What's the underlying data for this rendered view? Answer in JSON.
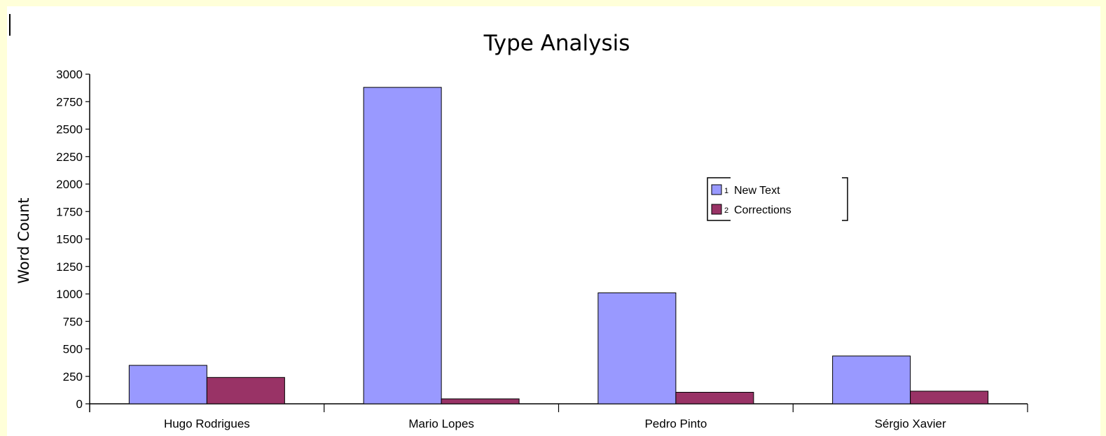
{
  "chart_data": {
    "type": "bar",
    "title": "Type Analysis",
    "xlabel": "",
    "ylabel": "Word Count",
    "categories": [
      "Hugo Rodrigues",
      "Mario Lopes",
      "Pedro Pinto",
      "Sérgio Xavier"
    ],
    "series": [
      {
        "name": "New Text",
        "values": [
          350,
          2880,
          1010,
          435
        ],
        "color": "#9999ff"
      },
      {
        "name": "Corrections",
        "values": [
          240,
          45,
          105,
          115
        ],
        "color": "#993366"
      }
    ],
    "ylim": [
      0,
      3000
    ],
    "yticks": [
      0,
      250,
      500,
      750,
      1000,
      1250,
      1500,
      1750,
      2000,
      2250,
      2500,
      2750,
      3000
    ],
    "grid": false,
    "legend": {
      "placement": "right",
      "entries": [
        {
          "index": "1",
          "label": "New Text"
        },
        {
          "index": "2",
          "label": "Corrections"
        }
      ]
    }
  }
}
